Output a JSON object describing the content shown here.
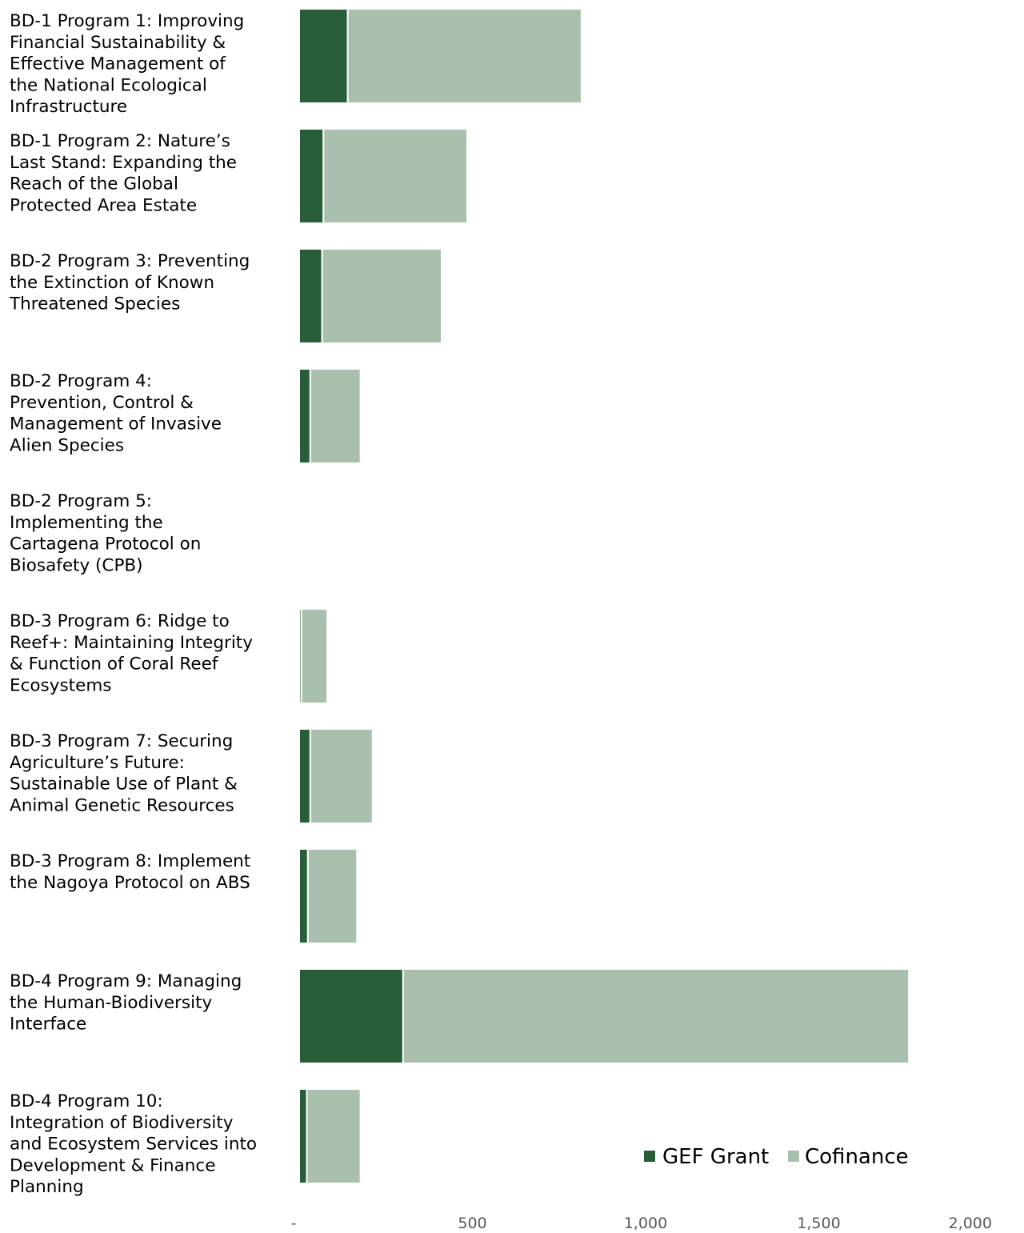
{
  "chart_data": {
    "type": "bar",
    "orientation": "horizontal",
    "stacked": true,
    "categories": [
      "BD-1 Program 1: Improving Financial Sustainability & Effective Management of the National Ecological Infrastructure",
      "BD-1 Program 2: Nature’s Last Stand: Expanding the Reach of the Global Protected Area Estate",
      "BD-2 Program 3: Preventing the Extinction of Known Threatened Species",
      "BD-2 Program 4: Prevention, Control & Management of Invasive Alien Species",
      "BD-2 Program 5: Implementing the Cartagena Protocol on Biosafety (CPB)",
      "BD-3 Program 6: Ridge to Reef+: Maintaining Integrity & Function of Coral Reef Ecosystems",
      "BD-3 Program 7: Securing Agriculture’s Future: Sustainable Use of Plant & Animal Genetic Resources",
      "BD-3 Program 8: Implement the Nagoya Protocol on ABS",
      "BD-4 Program 9: Managing the Human-Biodiversity Interface",
      "BD-4 Program 10: Integration of Biodiversity and Ecosystem Services into Development & Finance Planning"
    ],
    "category_lines": [
      [
        "BD-1 Program 1: Improving",
        "Financial Sustainability &",
        "Effective Management of",
        "the National Ecological",
        "Infrastructure"
      ],
      [
        "BD-1 Program 2: Nature’s",
        "Last Stand: Expanding the",
        "Reach of the Global",
        "Protected Area Estate"
      ],
      [
        "BD-2 Program 3: Preventing",
        "the Extinction of Known",
        "Threatened Species"
      ],
      [
        "BD-2 Program 4:",
        "Prevention, Control &",
        "Management of Invasive",
        "Alien Species"
      ],
      [
        "BD-2 Program 5:",
        "Implementing the",
        "Cartagena Protocol on",
        "Biosafety (CPB)"
      ],
      [
        "BD-3 Program 6: Ridge to",
        "Reef+: Maintaining Integrity",
        "& Function of Coral Reef",
        "Ecosystems"
      ],
      [
        "BD-3 Program 7: Securing",
        "Agriculture’s Future:",
        "Sustainable Use of Plant &",
        "Animal Genetic Resources"
      ],
      [
        "BD-3 Program 8: Implement",
        "the Nagoya Protocol on ABS"
      ],
      [
        "BD-4 Program 9: Managing",
        "the Human-Biodiversity",
        "Interface"
      ],
      [
        "BD-4 Program 10:",
        "Integration of Biodiversity",
        "and Ecosystem Services into",
        "Development & Finance",
        "Planning"
      ]
    ],
    "series": [
      {
        "name": "GEF Grant",
        "color": "#275E37",
        "values": [
          140,
          70,
          66,
          32,
          1,
          6,
          32,
          25,
          300,
          22
        ]
      },
      {
        "name": "Cofinance",
        "color": "#A9C0AE",
        "values": [
          675,
          415,
          345,
          145,
          2,
          75,
          180,
          142,
          1460,
          155
        ]
      }
    ],
    "xlim": [
      0,
      2000
    ],
    "x_ticks": [
      0,
      500,
      1000,
      1500,
      2000
    ],
    "x_tick_labels": [
      "-",
      "500",
      "1,000",
      "1,500",
      "2,000"
    ],
    "title": "",
    "xlabel": "",
    "ylabel": "",
    "grid": false,
    "legend_position": "bottom-right"
  }
}
